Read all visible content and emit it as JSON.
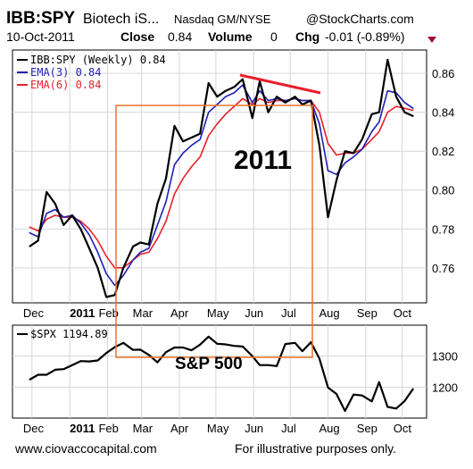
{
  "header": {
    "symbol": "IBB:SPY",
    "name": "Biotech iS...",
    "exchange": "Nasdaq GM/NYSE",
    "brand": "@StockCharts.com",
    "date": "10-Oct-2011",
    "close_label": "Close",
    "close_value": "0.84",
    "volume_label": "Volume",
    "volume_value": "0",
    "chg_label": "Chg",
    "chg_value": "-0.01 (-0.89%)"
  },
  "footer": {
    "website": "www.ciovaccocapital.com",
    "note": "For illustrative purposes only."
  },
  "colors": {
    "price": "#000000",
    "ema3": "#1f1fb4",
    "ema6": "#e8202a",
    "annotation": "#e8742e",
    "trendline": "#e8202a",
    "down_arrow": "#9a1030"
  },
  "chart_data": [
    {
      "type": "line",
      "panel": "top",
      "x": [
        "2010-11-29",
        "2010-12-06",
        "2010-12-13",
        "2010-12-20",
        "2010-12-27",
        "2011-01-03",
        "2011-01-10",
        "2011-01-17",
        "2011-01-24",
        "2011-01-31",
        "2011-02-07",
        "2011-02-14",
        "2011-02-22",
        "2011-02-28",
        "2011-03-07",
        "2011-03-14",
        "2011-03-21",
        "2011-03-28",
        "2011-04-04",
        "2011-04-11",
        "2011-04-18",
        "2011-04-25",
        "2011-05-02",
        "2011-05-09",
        "2011-05-16",
        "2011-05-23",
        "2011-05-31",
        "2011-06-06",
        "2011-06-13",
        "2011-06-20",
        "2011-06-27",
        "2011-07-05",
        "2011-07-11",
        "2011-07-18",
        "2011-07-25",
        "2011-08-01",
        "2011-08-08",
        "2011-08-15",
        "2011-08-22",
        "2011-08-29",
        "2011-09-06",
        "2011-09-12",
        "2011-09-19",
        "2011-09-26",
        "2011-10-03",
        "2011-10-10"
      ],
      "x_tick_labels": [
        "Dec",
        "2011",
        "Feb",
        "Mar",
        "Apr",
        "May",
        "Jun",
        "Jul",
        "Aug",
        "Sep",
        "Oct"
      ],
      "series": [
        {
          "name": "IBB:SPY (Weekly) 0.84",
          "values": [
            0.771,
            0.774,
            0.799,
            0.793,
            0.782,
            0.787,
            0.78,
            0.77,
            0.76,
            0.745,
            0.746,
            0.76,
            0.771,
            0.773,
            0.772,
            0.793,
            0.806,
            0.833,
            0.825,
            0.827,
            0.829,
            0.855,
            0.848,
            0.851,
            0.853,
            0.857,
            0.837,
            0.856,
            0.84,
            0.848,
            0.845,
            0.848,
            0.844,
            0.846,
            0.823,
            0.786,
            0.805,
            0.82,
            0.819,
            0.826,
            0.839,
            0.84,
            0.867,
            0.848,
            0.84,
            0.838
          ]
        },
        {
          "name": "EMA(3) 0.84",
          "values": [
            0.778,
            0.776,
            0.788,
            0.79,
            0.786,
            0.787,
            0.783,
            0.777,
            0.768,
            0.757,
            0.751,
            0.756,
            0.764,
            0.768,
            0.77,
            0.782,
            0.794,
            0.813,
            0.819,
            0.823,
            0.826,
            0.84,
            0.844,
            0.848,
            0.85,
            0.854,
            0.845,
            0.851,
            0.846,
            0.847,
            0.846,
            0.847,
            0.846,
            0.846,
            0.834,
            0.81,
            0.808,
            0.814,
            0.817,
            0.821,
            0.83,
            0.835,
            0.851,
            0.85,
            0.845,
            0.842
          ]
        },
        {
          "name": "EMA(6) 0.84",
          "values": [
            0.781,
            0.779,
            0.785,
            0.787,
            0.786,
            0.786,
            0.784,
            0.78,
            0.774,
            0.766,
            0.76,
            0.76,
            0.764,
            0.767,
            0.768,
            0.775,
            0.784,
            0.798,
            0.806,
            0.812,
            0.817,
            0.828,
            0.834,
            0.839,
            0.843,
            0.847,
            0.844,
            0.847,
            0.845,
            0.846,
            0.846,
            0.847,
            0.846,
            0.846,
            0.84,
            0.824,
            0.818,
            0.819,
            0.819,
            0.821,
            0.826,
            0.83,
            0.84,
            0.843,
            0.842,
            0.841
          ]
        }
      ],
      "ylim": [
        0.742,
        0.872
      ],
      "y_ticks": [
        0.76,
        0.78,
        0.8,
        0.82,
        0.84,
        0.86
      ],
      "y_tick_labels": [
        "0.76",
        "0.78",
        "0.80",
        "0.82",
        "0.84",
        "0.86"
      ],
      "grid": true,
      "legend_position": "top-left",
      "annotations": [
        "2011"
      ]
    },
    {
      "type": "line",
      "panel": "bottom",
      "x": [
        "2010-11-29",
        "2010-12-06",
        "2010-12-13",
        "2010-12-20",
        "2010-12-27",
        "2011-01-03",
        "2011-01-10",
        "2011-01-17",
        "2011-01-24",
        "2011-01-31",
        "2011-02-07",
        "2011-02-14",
        "2011-02-22",
        "2011-02-28",
        "2011-03-07",
        "2011-03-14",
        "2011-03-21",
        "2011-03-28",
        "2011-04-04",
        "2011-04-11",
        "2011-04-18",
        "2011-04-25",
        "2011-05-02",
        "2011-05-09",
        "2011-05-16",
        "2011-05-23",
        "2011-05-31",
        "2011-06-06",
        "2011-06-13",
        "2011-06-20",
        "2011-06-27",
        "2011-07-05",
        "2011-07-11",
        "2011-07-18",
        "2011-07-25",
        "2011-08-01",
        "2011-08-08",
        "2011-08-15",
        "2011-08-22",
        "2011-08-29",
        "2011-09-06",
        "2011-09-12",
        "2011-09-19",
        "2011-09-26",
        "2011-10-03",
        "2011-10-10"
      ],
      "x_tick_labels": [
        "Dec",
        "2011",
        "Feb",
        "Mar",
        "Apr",
        "May",
        "Jun",
        "Jul",
        "Aug",
        "Sep",
        "Oct"
      ],
      "series": [
        {
          "name": "$SPX 1194.89",
          "values": [
            1224,
            1240,
            1240,
            1256,
            1258,
            1271,
            1284,
            1283,
            1286,
            1310,
            1329,
            1343,
            1320,
            1321,
            1304,
            1280,
            1313,
            1328,
            1328,
            1319,
            1337,
            1363,
            1340,
            1338,
            1333,
            1331,
            1300,
            1271,
            1271,
            1268,
            1339,
            1343,
            1316,
            1345,
            1292,
            1199,
            1178,
            1123,
            1176,
            1173,
            1154,
            1216,
            1136,
            1131,
            1155,
            1195
          ]
        }
      ],
      "ylim": [
        1100,
        1400
      ],
      "y_ticks": [
        1200,
        1300
      ],
      "y_tick_labels": [
        "1200",
        "1300"
      ],
      "grid": true,
      "legend_position": "top-left",
      "annotations": [
        "S&P 500"
      ]
    }
  ]
}
